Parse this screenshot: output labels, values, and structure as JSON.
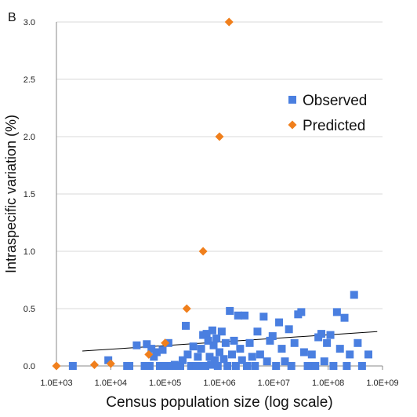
{
  "chart_data": {
    "type": "scatter",
    "panel_label": "B",
    "title": "",
    "xlabel": "Census population size (log scale)",
    "ylabel": "Intraspecific variation (%)",
    "x_scale": "log",
    "xlim": [
      1000,
      1000000000
    ],
    "ylim": [
      0,
      3.0
    ],
    "x_tick_values": [
      1000,
      10000,
      100000,
      1000000,
      10000000,
      100000000,
      1000000000
    ],
    "x_tick_labels": [
      "1.0E+03",
      "1.0E+04",
      "1.0E+05",
      "1.0E+06",
      "1.0E+07",
      "1.0E+08",
      "1.0E+09"
    ],
    "y_tick_values": [
      0,
      0.5,
      1.0,
      1.5,
      2.0,
      2.5,
      3.0
    ],
    "y_tick_labels": [
      "0.0",
      "0.5",
      "1.0",
      "1.5",
      "2.0",
      "2.5",
      "3.0"
    ],
    "grid": "horizontal",
    "legend_position": "top-right",
    "series": [
      {
        "name": "Observed",
        "marker": "square",
        "color": "#4a7fe0",
        "points": [
          [
            2000,
            0.0
          ],
          [
            9000,
            0.05
          ],
          [
            20000,
            0.0
          ],
          [
            22000,
            0.0
          ],
          [
            30000,
            0.18
          ],
          [
            42000,
            0.0
          ],
          [
            46000,
            0.19
          ],
          [
            52000,
            0.0
          ],
          [
            56000,
            0.15
          ],
          [
            62000,
            0.08
          ],
          [
            70000,
            0.12
          ],
          [
            80000,
            0.0
          ],
          [
            90000,
            0.14
          ],
          [
            100000,
            0.0
          ],
          [
            115000,
            0.2
          ],
          [
            130000,
            0.0
          ],
          [
            150000,
            0.01
          ],
          [
            165000,
            0.0
          ],
          [
            190000,
            0.0
          ],
          [
            210000,
            0.05
          ],
          [
            240000,
            0.35
          ],
          [
            260000,
            0.1
          ],
          [
            300000,
            0.0
          ],
          [
            330000,
            0.17
          ],
          [
            370000,
            0.0
          ],
          [
            400000,
            0.08
          ],
          [
            430000,
            0.0
          ],
          [
            460000,
            0.15
          ],
          [
            500000,
            0.27
          ],
          [
            550000,
            0.0
          ],
          [
            580000,
            0.28
          ],
          [
            620000,
            0.22
          ],
          [
            660000,
            0.08
          ],
          [
            700000,
            0.01
          ],
          [
            740000,
            0.31
          ],
          [
            780000,
            0.18
          ],
          [
            820000,
            0.05
          ],
          [
            880000,
            0.24
          ],
          [
            930000,
            0.0
          ],
          [
            1000000,
            0.12
          ],
          [
            1100000,
            0.3
          ],
          [
            1200000,
            0.06
          ],
          [
            1300000,
            0.2
          ],
          [
            1400000,
            0.0
          ],
          [
            1550000,
            0.48
          ],
          [
            1700000,
            0.1
          ],
          [
            1850000,
            0.22
          ],
          [
            2000000,
            0.0
          ],
          [
            2200000,
            0.44
          ],
          [
            2400000,
            0.15
          ],
          [
            2600000,
            0.05
          ],
          [
            2900000,
            0.44
          ],
          [
            3200000,
            0.0
          ],
          [
            3600000,
            0.2
          ],
          [
            4000000,
            0.08
          ],
          [
            4500000,
            0.0
          ],
          [
            5000000,
            0.3
          ],
          [
            5600000,
            0.1
          ],
          [
            6500000,
            0.43
          ],
          [
            7500000,
            0.04
          ],
          [
            8500000,
            0.22
          ],
          [
            9500000,
            0.26
          ],
          [
            11000000,
            0.0
          ],
          [
            12500000,
            0.38
          ],
          [
            14000000,
            0.15
          ],
          [
            16000000,
            0.04
          ],
          [
            19000000,
            0.32
          ],
          [
            21000000,
            0.0
          ],
          [
            24000000,
            0.2
          ],
          [
            28000000,
            0.45
          ],
          [
            32000000,
            0.47
          ],
          [
            36000000,
            0.12
          ],
          [
            42000000,
            0.0
          ],
          [
            50000000,
            0.1
          ],
          [
            58000000,
            0.0
          ],
          [
            66000000,
            0.25
          ],
          [
            75000000,
            0.28
          ],
          [
            85000000,
            0.04
          ],
          [
            95000000,
            0.2
          ],
          [
            110000000,
            0.27
          ],
          [
            125000000,
            0.0
          ],
          [
            145000000,
            0.47
          ],
          [
            165000000,
            0.15
          ],
          [
            200000000,
            0.42
          ],
          [
            220000000,
            0.0
          ],
          [
            250000000,
            0.1
          ],
          [
            300000000,
            0.62
          ],
          [
            350000000,
            0.2
          ],
          [
            420000000,
            0.0
          ],
          [
            550000000,
            0.1
          ]
        ]
      },
      {
        "name": "Predicted",
        "marker": "diamond",
        "color": "#f07f1c",
        "points": [
          [
            1000,
            0.0
          ],
          [
            5000,
            0.01
          ],
          [
            10000,
            0.02
          ],
          [
            50000,
            0.1
          ],
          [
            100000,
            0.2
          ],
          [
            250000,
            0.5
          ],
          [
            500000,
            1.0
          ],
          [
            1000000,
            2.0
          ],
          [
            1500000,
            3.0
          ]
        ]
      }
    ],
    "trendline": {
      "color": "#000000",
      "x": [
        3000,
        800000000
      ],
      "y": [
        0.13,
        0.3
      ]
    }
  }
}
